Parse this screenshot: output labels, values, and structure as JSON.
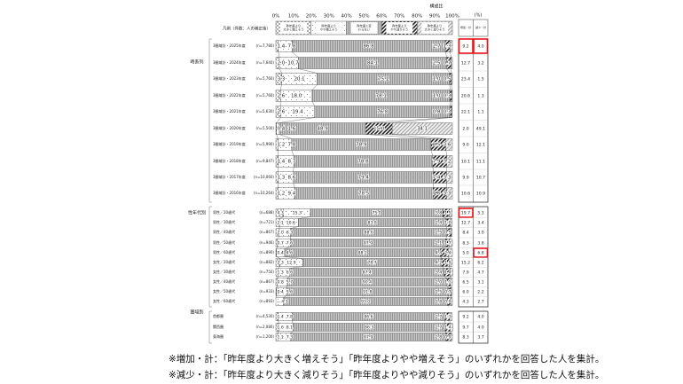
{
  "chart_data": {
    "type": "bar",
    "stacked": true,
    "orientation": "horizontal",
    "top_label": "構成比",
    "unit_label": "(%)",
    "xlim": [
      0,
      100
    ],
    "x_ticks": [
      "0%",
      "10%",
      "20%",
      "30%",
      "40%",
      "50%",
      "60%",
      "70%",
      "80%",
      "90%",
      "100%"
    ],
    "legend_title": "凡例（件数：人の補正後）",
    "legend": [
      "昨年度より大きく増えそう",
      "昨年度よりやや増えそう",
      "昨年度と変わらない",
      "昨年度よりやや減りそう",
      "昨年度より大きく減りそう"
    ],
    "summary_headers": [
      "増加・計",
      "減少・計"
    ],
    "highlight_color": "#e8141c",
    "groups": [
      {
        "label": "時系列",
        "rows": [
          {
            "label": "3圏域計・2025年度",
            "n": "(n=7,780)",
            "values": [
              1.4,
              7.8,
              86.8,
              2.7,
              1.3
            ],
            "inc": "9.2",
            "dec": "4.0",
            "hl_inc": true,
            "hl_dec": true
          },
          {
            "label": "3圏域計・2024年度",
            "n": "(n=7,640)",
            "values": [
              2.0,
              10.7,
              84.1,
              2.5,
              0.7
            ],
            "inc": "12.7",
            "dec": "3.2"
          },
          {
            "label": "3圏域計・2023年度",
            "n": "(n=5,760)",
            "values": [
              3.3,
              20.1,
              75.1,
              1.0,
              0.5
            ],
            "inc": "23.4",
            "dec": "1.5"
          },
          {
            "label": "3圏域計・2022年度",
            "n": "(n=5,760)",
            "values": [
              2.6,
              18.0,
              78.1,
              1.0,
              0.3
            ],
            "inc": "20.6",
            "dec": "1.3"
          },
          {
            "label": "3圏域計・2021年度",
            "n": "(n=5,630)",
            "values": [
              2.6,
              19.4,
              76.8,
              0.8,
              0.3
            ],
            "inc": "22.1",
            "dec": "1.1"
          },
          {
            "label": "3圏域計・2020年度",
            "n": "(n=5,500)",
            "values": [
              0.4,
              1.6,
              48.9,
              15.0,
              34.1
            ],
            "inc": "2.0",
            "dec": "49.1"
          },
          {
            "label": "3圏域計・2019年度",
            "n": "(n=5,990)",
            "values": [
              1.2,
              7.8,
              78.9,
              8.5,
              3.6
            ],
            "inc": "9.0",
            "dec": "12.1"
          },
          {
            "label": "3圏域計・2018年度",
            "n": "(n=9,847)",
            "values": [
              1.4,
              8.7,
              78.8,
              7.9,
              3.2
            ],
            "inc": "10.1",
            "dec": "11.1"
          },
          {
            "label": "3圏域計・2017年度",
            "n": "(n=10,060)",
            "values": [
              1.3,
              8.6,
              79.4,
              7.4,
              3.3
            ],
            "inc": "9.9",
            "dec": "10.7"
          },
          {
            "label": "3圏域計・2016年度",
            "n": "(n=10,264)",
            "values": [
              1.2,
              9.4,
              78.5,
              7.6,
              3.3
            ],
            "inc": "10.6",
            "dec": "10.9"
          }
        ]
      },
      {
        "label": "性年代別",
        "rows": [
          {
            "label": "男性／20歳代",
            "n": "(n=688)",
            "values": [
              4.3,
              15.3,
              75.0,
              3.8,
              1.5
            ],
            "inc": "19.7",
            "dec": "5.3",
            "hl_inc": true
          },
          {
            "label": "男性／30歳代",
            "n": "(n=721)",
            "values": [
              2.1,
              10.6,
              83.8,
              2.4,
              1.0
            ],
            "inc": "12.7",
            "dec": "3.4"
          },
          {
            "label": "男性／40歳代",
            "n": "(n=867)",
            "values": [
              2.0,
              6.3,
              88.6,
              2.5,
              0.5
            ],
            "inc": "8.4",
            "dec": "3.0"
          },
          {
            "label": "男性／50歳代",
            "n": "(n=946)",
            "values": [
              0.7,
              7.6,
              87.9,
              2.1,
              1.7
            ],
            "inc": "8.3",
            "dec": "3.8"
          },
          {
            "label": "男性／60歳代",
            "n": "(n=890)",
            "values": [
              0.4,
              4.6,
              88.2,
              4.4,
              2.4
            ],
            "inc": "5.0",
            "dec": "6.8",
            "hl_dec": true
          },
          {
            "label": "女性／20歳代",
            "n": "(n=882)",
            "values": [
              2.3,
              12.9,
              78.7,
              4.2,
              1.9
            ],
            "inc": "15.2",
            "dec": "6.2"
          },
          {
            "label": "女性／30歳代",
            "n": "(n=750)",
            "values": [
              1.3,
              6.6,
              87.4,
              3.4,
              1.4
            ],
            "inc": "7.9",
            "dec": "4.7"
          },
          {
            "label": "女性／40歳代",
            "n": "(n=867)",
            "values": [
              0.8,
              5.7,
              90.4,
              2.0,
              1.1
            ],
            "inc": "6.5",
            "dec": "3.1"
          },
          {
            "label": "女性／50歳代",
            "n": "(n=933)",
            "values": [
              0.4,
              5.6,
              91.8,
              1.5,
              0.7
            ],
            "inc": "6.0",
            "dec": "2.2"
          },
          {
            "label": "女性／60歳代",
            "n": "(n=893)",
            "values": [
              0.0,
              4.3,
              93.0,
              1.8,
              0.9
            ],
            "inc": "4.3",
            "dec": "2.7"
          }
        ]
      },
      {
        "label": "圏域別",
        "rows": [
          {
            "label": "首都圏",
            "n": "(n=4,530)",
            "values": [
              1.4,
              7.8,
              86.6,
              2.7,
              1.3
            ],
            "inc": "9.2",
            "dec": "4.0"
          },
          {
            "label": "関西圏",
            "n": "(n=2,080)",
            "values": [
              1.6,
              8.1,
              86.3,
              2.7,
              1.4
            ],
            "inc": "9.7",
            "dec": "4.0"
          },
          {
            "label": "東海圏",
            "n": "(n=1,200)",
            "values": [
              1.1,
              7.3,
              87.9,
              2.8,
              0.9
            ],
            "inc": "8.3",
            "dec": "3.7"
          }
        ]
      }
    ]
  },
  "footnotes": [
    "※増加・計：「昨年度より大きく増えそう」「昨年度よりやや増えそう」のいずれかを回答した人を集計。",
    "※減少・計：「昨年度より大きく減りそう」「昨年度よりやや減りそう」のいずれかを回答した人を集計。"
  ]
}
